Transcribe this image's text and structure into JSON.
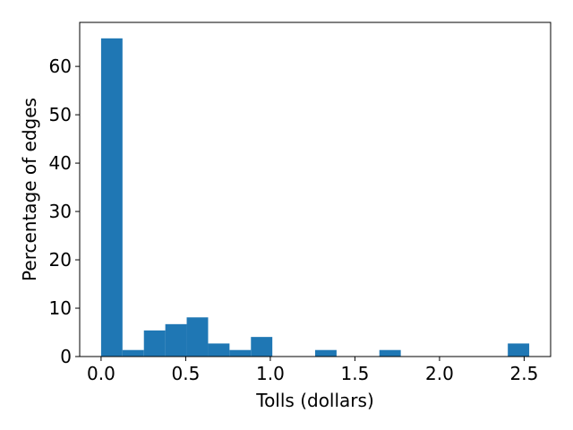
{
  "chart_data": {
    "type": "bar",
    "title": "",
    "xlabel": "Tolls (dollars)",
    "ylabel": "Percentage of edges",
    "xlim": [
      -0.1265,
      2.6565
    ],
    "ylim": [
      0,
      69.1
    ],
    "bar_color": "#1f77b4",
    "bin_edges": [
      0.0,
      0.1265,
      0.253,
      0.3795,
      0.506,
      0.6325,
      0.759,
      0.8855,
      1.012,
      1.1385,
      1.265,
      1.3915,
      1.518,
      1.6445,
      1.771,
      1.8975,
      2.024,
      2.1505,
      2.277,
      2.4035,
      2.53
    ],
    "values": [
      65.8,
      1.35,
      5.4,
      6.7,
      8.1,
      2.7,
      1.35,
      4.05,
      0,
      0,
      1.35,
      0,
      0,
      1.35,
      0,
      0,
      0,
      0,
      0,
      2.7
    ],
    "xticks": [
      0.0,
      0.5,
      1.0,
      1.5,
      2.0,
      2.5
    ],
    "xtick_labels": [
      "0.0",
      "0.5",
      "1.0",
      "1.5",
      "2.0",
      "2.5"
    ],
    "yticks": [
      0,
      10,
      20,
      30,
      40,
      50,
      60
    ],
    "ytick_labels": [
      "0",
      "10",
      "20",
      "30",
      "40",
      "50",
      "60"
    ],
    "grid": false,
    "legend": false
  }
}
